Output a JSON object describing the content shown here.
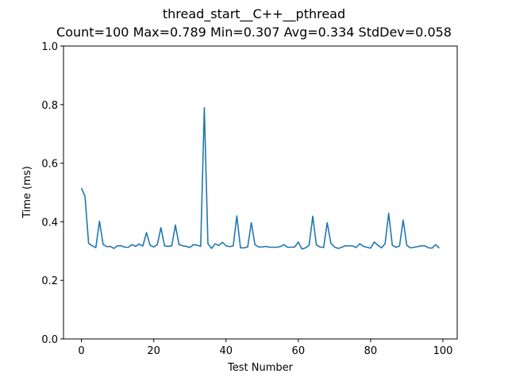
{
  "chart_data": {
    "type": "line",
    "title": "thread_start__C++__pthread",
    "subtitle": "Count=100 Max=0.789 Min=0.307 Avg=0.334 StdDev=0.058",
    "xlabel": "Test Number",
    "ylabel": "Time (ms)",
    "xlim": [
      -4.95,
      103.95
    ],
    "ylim": [
      0.0,
      1.0
    ],
    "xticks": [
      0,
      20,
      40,
      60,
      80,
      100
    ],
    "yticks": [
      0.0,
      0.2,
      0.4,
      0.6,
      0.8,
      1.0
    ],
    "xtick_labels": [
      "0",
      "20",
      "40",
      "60",
      "80",
      "100"
    ],
    "ytick_labels": [
      "0.0",
      "0.2",
      "0.4",
      "0.6",
      "0.8",
      "1.0"
    ],
    "grid": false,
    "line_color": "#1f77b4",
    "series": [
      {
        "x": [
          0,
          1,
          2,
          3,
          4,
          5,
          6,
          7,
          8,
          9,
          10,
          11,
          12,
          13,
          14,
          15,
          16,
          17,
          18,
          19,
          20,
          21,
          22,
          23,
          24,
          25,
          26,
          27,
          28,
          29,
          30,
          31,
          32,
          33,
          34,
          35,
          36,
          37,
          38,
          39,
          40,
          41,
          42,
          43,
          44,
          45,
          46,
          47,
          48,
          49,
          50,
          51,
          52,
          53,
          54,
          55,
          56,
          57,
          58,
          59,
          60,
          61,
          62,
          63,
          64,
          65,
          66,
          67,
          68,
          69,
          70,
          71,
          72,
          73,
          74,
          75,
          76,
          77,
          78,
          79,
          80,
          81,
          82,
          83,
          84,
          85,
          86,
          87,
          88,
          89,
          90,
          91,
          92,
          93,
          94,
          95,
          96,
          97,
          98,
          99
        ],
        "values": [
          0.515,
          0.487,
          0.326,
          0.318,
          0.312,
          0.402,
          0.323,
          0.315,
          0.316,
          0.309,
          0.318,
          0.318,
          0.313,
          0.313,
          0.322,
          0.316,
          0.324,
          0.317,
          0.363,
          0.32,
          0.314,
          0.322,
          0.38,
          0.318,
          0.316,
          0.318,
          0.389,
          0.322,
          0.318,
          0.316,
          0.312,
          0.322,
          0.32,
          0.316,
          0.789,
          0.325,
          0.309,
          0.325,
          0.319,
          0.33,
          0.318,
          0.315,
          0.318,
          0.42,
          0.311,
          0.311,
          0.314,
          0.397,
          0.322,
          0.314,
          0.314,
          0.316,
          0.313,
          0.313,
          0.313,
          0.315,
          0.322,
          0.313,
          0.313,
          0.314,
          0.331,
          0.307,
          0.311,
          0.32,
          0.419,
          0.321,
          0.314,
          0.312,
          0.397,
          0.327,
          0.314,
          0.309,
          0.313,
          0.318,
          0.318,
          0.318,
          0.312,
          0.325,
          0.316,
          0.313,
          0.31,
          0.331,
          0.32,
          0.311,
          0.325,
          0.429,
          0.32,
          0.313,
          0.317,
          0.406,
          0.32,
          0.311,
          0.313,
          0.315,
          0.318,
          0.318,
          0.311,
          0.31,
          0.322,
          0.31
        ]
      }
    ]
  }
}
